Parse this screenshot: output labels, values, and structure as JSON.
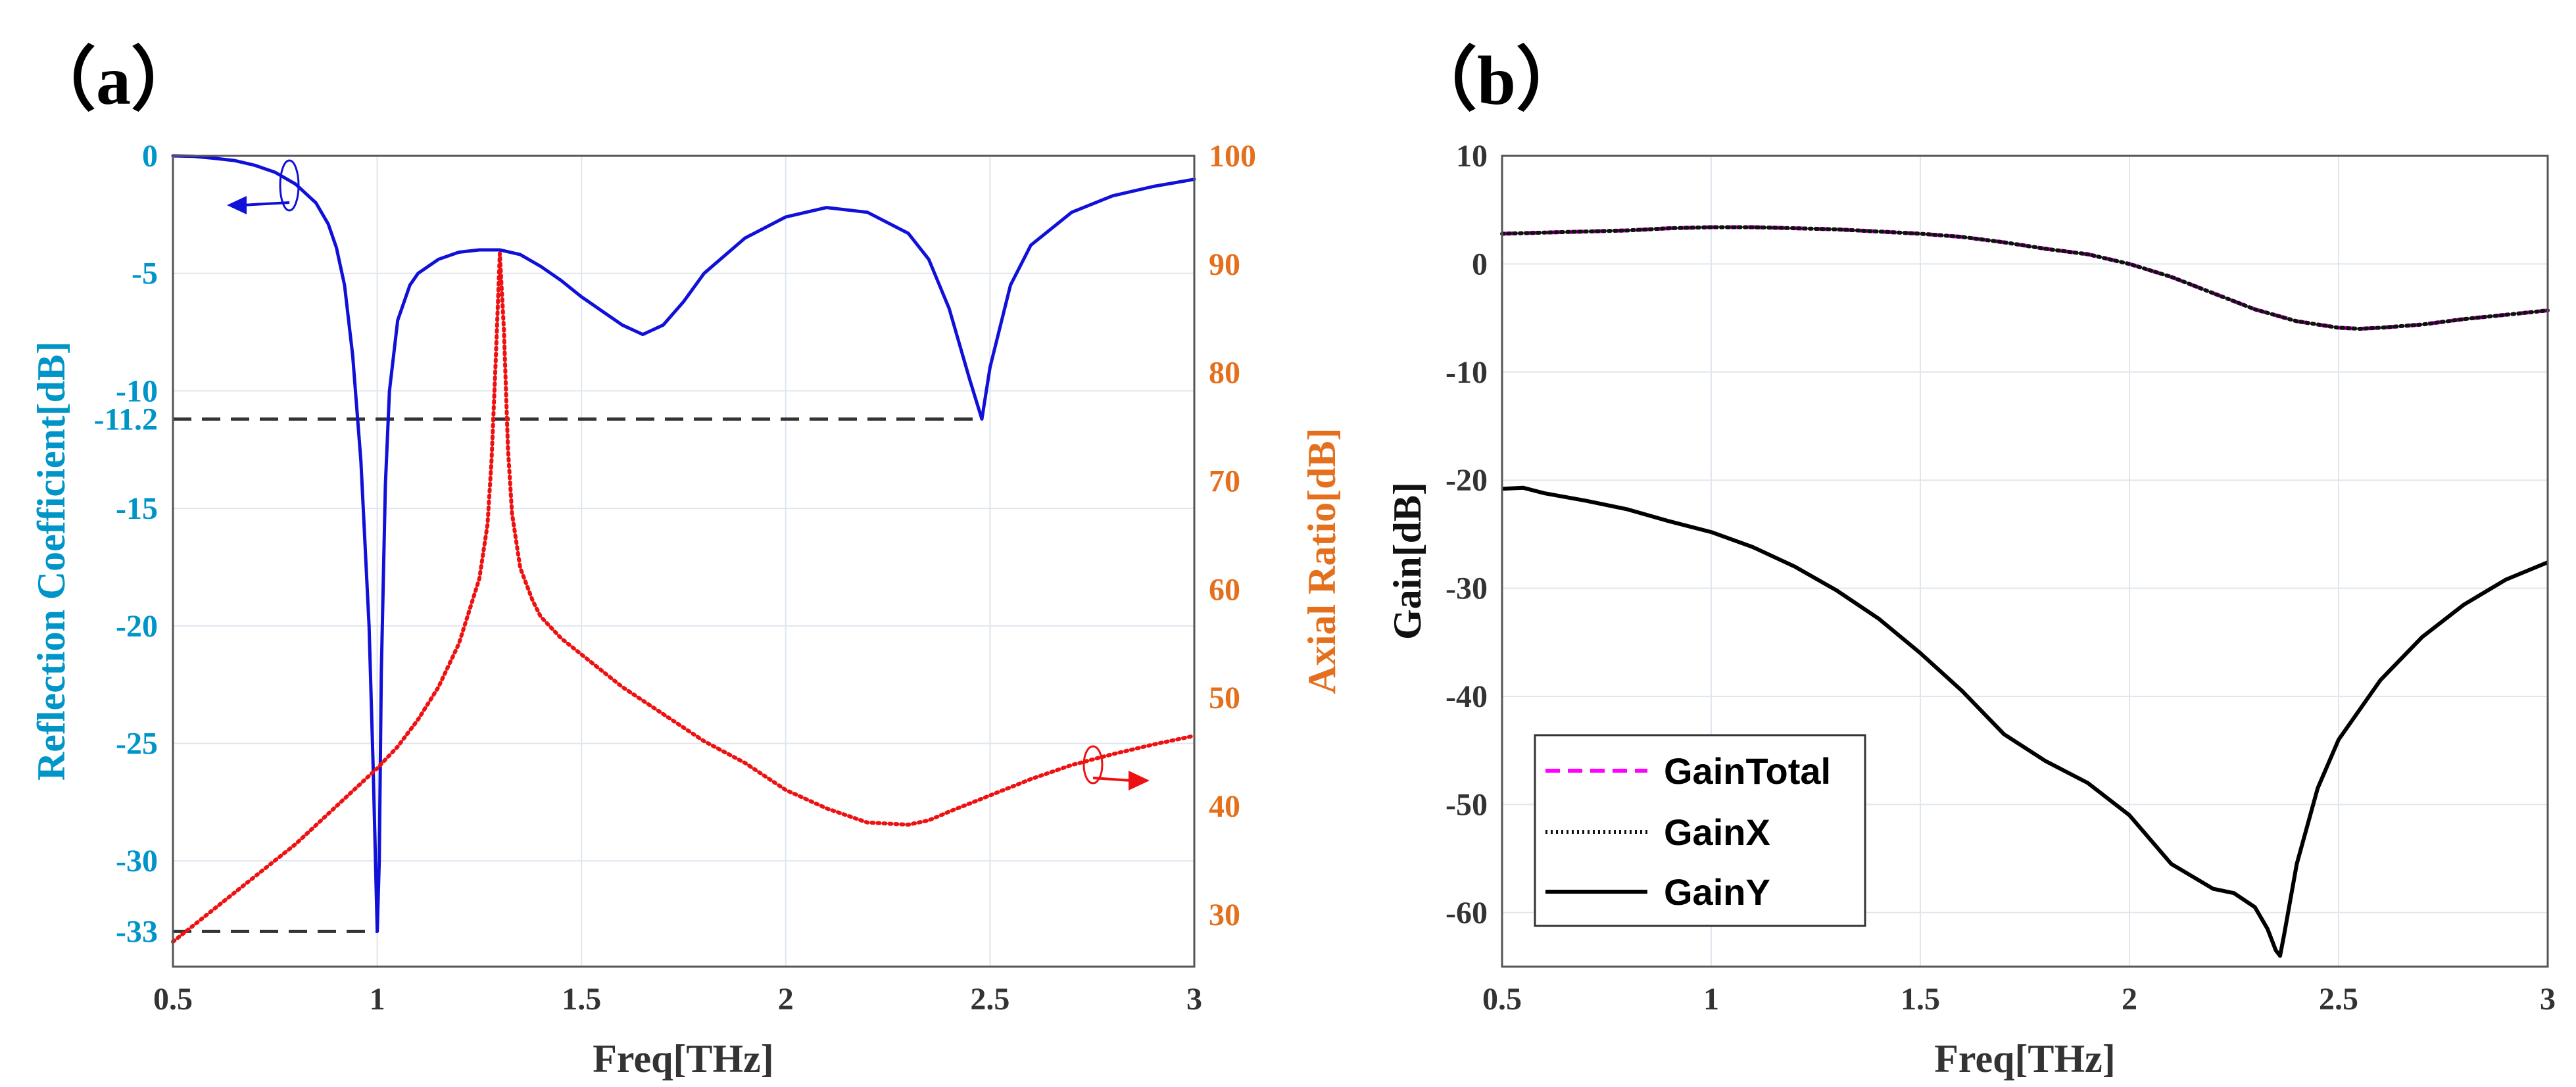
{
  "panels": {
    "a": {
      "label": "（a）"
    },
    "b": {
      "label": "（b）"
    }
  },
  "colors": {
    "axis_left_a": "#0095c8",
    "axis_right_a": "#e4701e",
    "reflection": "#1010d8",
    "axial": "#ee1111",
    "annot_line": "#333333",
    "gain_total": "#ff00ff",
    "gain_x": "#111111",
    "gain_y": "#000000",
    "grid": "#dfe6ee"
  },
  "chart_data": [
    {
      "type": "line",
      "panel": "a",
      "xlabel": "Freq[THz]",
      "ylabel_left": "Reflection Coefficient[dB]",
      "ylabel_right": "Axial Ratio[dB]",
      "xlim": [
        0.5,
        3
      ],
      "ylim_left": [
        -34.5,
        0
      ],
      "ylim_right": [
        25.2,
        100
      ],
      "xticks": [
        "0.5",
        "1",
        "1.5",
        "2",
        "2.5",
        "3"
      ],
      "yticks_left": [
        "0",
        "-5",
        "-10",
        "-11.2",
        "-15",
        "-20",
        "-25",
        "-30",
        "-33"
      ],
      "yticks_right": [
        "30",
        "40",
        "50",
        "60",
        "70",
        "80",
        "90",
        "100"
      ],
      "grid": true,
      "series": [
        {
          "axis": "left",
          "style": "solid",
          "x": [
            0.5,
            0.55,
            0.6,
            0.65,
            0.7,
            0.75,
            0.8,
            0.85,
            0.88,
            0.9,
            0.92,
            0.94,
            0.96,
            0.98,
            0.99,
            1.0,
            1.005,
            1.01,
            1.02,
            1.03,
            1.05,
            1.08,
            1.1,
            1.15,
            1.2,
            1.25,
            1.3,
            1.35,
            1.4,
            1.45,
            1.5,
            1.55,
            1.6,
            1.65,
            1.7,
            1.75,
            1.8,
            1.9,
            2.0,
            2.1,
            2.2,
            2.3,
            2.35,
            2.4,
            2.45,
            2.48,
            2.5,
            2.55,
            2.6,
            2.7,
            2.8,
            2.9,
            3.0
          ],
          "values": [
            0,
            -0.02,
            -0.1,
            -0.2,
            -0.4,
            -0.7,
            -1.2,
            -2.0,
            -2.9,
            -3.9,
            -5.5,
            -8.5,
            -13.0,
            -20.0,
            -26.0,
            -33.0,
            -30.0,
            -22.0,
            -14.0,
            -10.0,
            -7.0,
            -5.5,
            -5.0,
            -4.4,
            -4.1,
            -4.0,
            -4.0,
            -4.2,
            -4.7,
            -5.3,
            -6.0,
            -6.6,
            -7.2,
            -7.6,
            -7.2,
            -6.2,
            -5.0,
            -3.5,
            -2.6,
            -2.2,
            -2.4,
            -3.3,
            -4.4,
            -6.5,
            -9.5,
            -11.2,
            -9.0,
            -5.5,
            -3.8,
            -2.4,
            -1.7,
            -1.3,
            -1.0
          ]
        },
        {
          "axis": "right",
          "style": "dotted",
          "x": [
            0.5,
            0.55,
            0.6,
            0.7,
            0.8,
            0.9,
            1.0,
            1.05,
            1.1,
            1.15,
            1.2,
            1.25,
            1.27,
            1.28,
            1.29,
            1.3,
            1.31,
            1.32,
            1.33,
            1.35,
            1.38,
            1.4,
            1.45,
            1.5,
            1.6,
            1.7,
            1.8,
            1.9,
            2.0,
            2.1,
            2.2,
            2.3,
            2.35,
            2.4,
            2.5,
            2.6,
            2.7,
            2.8,
            2.9,
            3.0
          ],
          "values": [
            27.5,
            29.0,
            30.5,
            33.5,
            36.5,
            40.0,
            43.5,
            45.5,
            48.0,
            51.0,
            55.0,
            61.0,
            66.0,
            72.0,
            81.0,
            91.0,
            84.0,
            73.0,
            67.0,
            62.0,
            59.0,
            57.5,
            55.5,
            54.0,
            51.0,
            48.5,
            46.0,
            44.0,
            41.5,
            39.8,
            38.5,
            38.3,
            38.7,
            39.5,
            41.0,
            42.5,
            43.8,
            44.8,
            45.7,
            46.5
          ]
        }
      ],
      "reference_lines": [
        {
          "y": -11.2,
          "x_from": 0.5,
          "x_to": 2.48
        },
        {
          "y": -33,
          "x_from": 0.5,
          "x_to": 1.0
        }
      ]
    },
    {
      "type": "line",
      "panel": "b",
      "xlabel": "Freq[THz]",
      "ylabel": "Gain[dB]",
      "xlim": [
        0.5,
        3
      ],
      "ylim": [
        -65,
        10
      ],
      "xticks": [
        "0.5",
        "1",
        "1.5",
        "2",
        "2.5",
        "3"
      ],
      "yticks": [
        "10",
        "0",
        "-10",
        "-20",
        "-30",
        "-40",
        "-50",
        "-60"
      ],
      "grid": true,
      "legend_position": "lower-left",
      "series": [
        {
          "name": "GainTotal",
          "style": "dashed",
          "x": [
            0.5,
            0.6,
            0.7,
            0.8,
            0.9,
            1.0,
            1.1,
            1.2,
            1.3,
            1.4,
            1.5,
            1.6,
            1.7,
            1.8,
            1.9,
            2.0,
            2.1,
            2.2,
            2.3,
            2.4,
            2.5,
            2.55,
            2.6,
            2.7,
            2.8,
            2.9,
            3.0
          ],
          "values": [
            2.8,
            2.9,
            3.0,
            3.1,
            3.3,
            3.4,
            3.4,
            3.3,
            3.2,
            3.0,
            2.8,
            2.5,
            2.0,
            1.4,
            0.9,
            0.0,
            -1.2,
            -2.7,
            -4.2,
            -5.3,
            -5.9,
            -6.0,
            -5.9,
            -5.6,
            -5.1,
            -4.7,
            -4.3
          ]
        },
        {
          "name": "GainX",
          "style": "dotted",
          "x": [
            0.5,
            0.6,
            0.7,
            0.8,
            0.9,
            1.0,
            1.1,
            1.2,
            1.3,
            1.4,
            1.5,
            1.6,
            1.7,
            1.8,
            1.9,
            2.0,
            2.1,
            2.2,
            2.3,
            2.4,
            2.5,
            2.55,
            2.6,
            2.7,
            2.8,
            2.9,
            3.0
          ],
          "values": [
            2.8,
            2.9,
            3.0,
            3.1,
            3.3,
            3.4,
            3.4,
            3.3,
            3.2,
            3.0,
            2.8,
            2.5,
            2.0,
            1.4,
            0.9,
            0.0,
            -1.2,
            -2.7,
            -4.2,
            -5.3,
            -5.9,
            -6.0,
            -5.9,
            -5.6,
            -5.1,
            -4.7,
            -4.3
          ]
        },
        {
          "name": "GainY",
          "style": "solid",
          "x": [
            0.5,
            0.55,
            0.6,
            0.7,
            0.8,
            0.9,
            1.0,
            1.1,
            1.2,
            1.3,
            1.4,
            1.5,
            1.6,
            1.7,
            1.8,
            1.9,
            2.0,
            2.1,
            2.2,
            2.25,
            2.3,
            2.33,
            2.35,
            2.36,
            2.37,
            2.4,
            2.45,
            2.5,
            2.6,
            2.7,
            2.8,
            2.9,
            3.0
          ],
          "values": [
            -20.8,
            -20.7,
            -21.2,
            -21.9,
            -22.7,
            -23.8,
            -24.8,
            -26.2,
            -28.0,
            -30.2,
            -32.8,
            -36.0,
            -39.5,
            -43.5,
            -46.0,
            -48.0,
            -51.0,
            -55.5,
            -57.8,
            -58.2,
            -59.5,
            -61.5,
            -63.5,
            -64.0,
            -62.0,
            -55.5,
            -48.5,
            -44.0,
            -38.5,
            -34.5,
            -31.5,
            -29.2,
            -27.6
          ]
        }
      ]
    }
  ]
}
